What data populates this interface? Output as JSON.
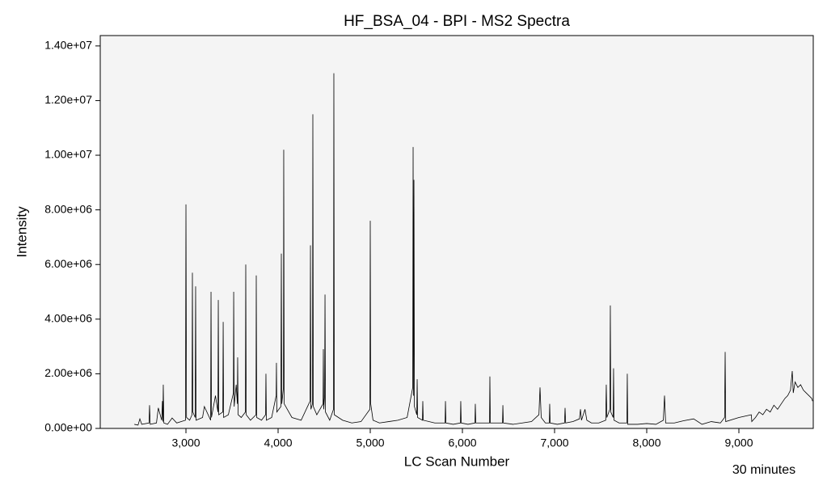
{
  "chart_data": {
    "type": "line",
    "title": "HF_BSA_04 - BPI - MS2 Spectra",
    "x_label": "LC Scan Number",
    "y_label": "Intensity",
    "annotation": "30 minutes",
    "color": "#000000",
    "xlim": [
      2070,
      9807
    ],
    "ylim": [
      0,
      14380000
    ],
    "xticks": [
      {
        "value": 3000,
        "label": "3,000"
      },
      {
        "value": 4000,
        "label": "4,000"
      },
      {
        "value": 5000,
        "label": "5,000"
      },
      {
        "value": 6000,
        "label": "6,000"
      },
      {
        "value": 7000,
        "label": "7,000"
      },
      {
        "value": 8000,
        "label": "8,000"
      },
      {
        "value": 9000,
        "label": "9,000"
      }
    ],
    "yticks": [
      {
        "value": 0,
        "label": "0.00e+00"
      },
      {
        "value": 2000000,
        "label": "2.00e+06"
      },
      {
        "value": 4000000,
        "label": "4.00e+06"
      },
      {
        "value": 6000000,
        "label": "6.00e+06"
      },
      {
        "value": 8000000,
        "label": "8.00e+06"
      },
      {
        "value": 10000000,
        "label": "1.00e+07"
      },
      {
        "value": 12000000,
        "label": "1.20e+07"
      },
      {
        "value": 14000000,
        "label": "1.40e+07"
      }
    ],
    "x": [
      2440,
      2480,
      2500,
      2520,
      2600,
      2605,
      2612,
      2680,
      2700,
      2737,
      2745,
      2750,
      2754,
      2760,
      2800,
      2850,
      2900,
      2995,
      3000,
      3006,
      3040,
      3066,
      3070,
      3075,
      3100,
      3105,
      3110,
      3180,
      3200,
      3268,
      3272,
      3277,
      3320,
      3347,
      3351,
      3356,
      3400,
      3404,
      3409,
      3460,
      3515,
      3518,
      3523,
      3545,
      3558,
      3561,
      3566,
      3600,
      3645,
      3649,
      3654,
      3700,
      3760,
      3763,
      3768,
      3820,
      3864,
      3868,
      3873,
      3930,
      3979,
      3982,
      3986,
      4030,
      4035,
      4040,
      4058,
      4061,
      4066,
      4150,
      4250,
      4347,
      4351,
      4356,
      4373,
      4377,
      4382,
      4420,
      4488,
      4491,
      4495,
      4505,
      4509,
      4514,
      4560,
      4601,
      4605,
      4610,
      4700,
      4800,
      4900,
      4996,
      5000,
      5005,
      5030,
      5100,
      5200,
      5300,
      5400,
      5461,
      5465,
      5470,
      5474,
      5479,
      5505,
      5509,
      5514,
      5566,
      5570,
      5575,
      5700,
      5812,
      5816,
      5821,
      5900,
      5978,
      5982,
      5987,
      6060,
      6136,
      6140,
      6145,
      6220,
      6294,
      6298,
      6303,
      6370,
      6435,
      6439,
      6444,
      6550,
      6650,
      6750,
      6830,
      6842,
      6855,
      6900,
      6943,
      6947,
      6952,
      7030,
      7108,
      7114,
      7120,
      7200,
      7270,
      7281,
      7292,
      7330,
      7350,
      7400,
      7480,
      7555,
      7561,
      7567,
      7600,
      7605,
      7610,
      7636,
      7640,
      7645,
      7700,
      7785,
      7789,
      7794,
      7900,
      8000,
      8100,
      8180,
      8193,
      8205,
      8300,
      8400,
      8509,
      8600,
      8700,
      8800,
      8845,
      8851,
      8857,
      9000,
      9135,
      9140,
      9180,
      9220,
      9260,
      9300,
      9340,
      9380,
      9420,
      9460,
      9500,
      9530,
      9560,
      9579,
      9590,
      9610,
      9640,
      9670,
      9700,
      9730,
      9760,
      9790,
      9800
    ],
    "values": [
      150000,
      120000,
      350000,
      150000,
      200000,
      850000,
      150000,
      200000,
      750000,
      300000,
      1000000,
      250000,
      1600000,
      200000,
      150000,
      380000,
      200000,
      300000,
      8200000,
      400000,
      300000,
      500000,
      5700000,
      600000,
      400000,
      5200000,
      300000,
      400000,
      800000,
      300000,
      5000000,
      400000,
      1200000,
      600000,
      4700000,
      500000,
      600000,
      3900000,
      400000,
      500000,
      1300000,
      5000000,
      800000,
      1600000,
      900000,
      2600000,
      500000,
      400000,
      600000,
      6000000,
      500000,
      300000,
      500000,
      5600000,
      400000,
      300000,
      500000,
      2000000,
      300000,
      400000,
      1200000,
      2400000,
      600000,
      800000,
      6400000,
      900000,
      1500000,
      10200000,
      900000,
      400000,
      300000,
      1000000,
      6700000,
      700000,
      900000,
      11500000,
      800000,
      500000,
      900000,
      2900000,
      700000,
      1200000,
      4900000,
      600000,
      300000,
      700000,
      13000000,
      500000,
      300000,
      200000,
      250000,
      700000,
      7600000,
      900000,
      300000,
      200000,
      250000,
      300000,
      400000,
      1500000,
      10300000,
      1200000,
      9100000,
      800000,
      500000,
      1800000,
      400000,
      300000,
      1000000,
      300000,
      200000,
      200000,
      1000000,
      200000,
      150000,
      200000,
      1000000,
      200000,
      150000,
      200000,
      900000,
      200000,
      200000,
      200000,
      1900000,
      200000,
      200000,
      200000,
      850000,
      200000,
      150000,
      200000,
      250000,
      500000,
      1500000,
      400000,
      200000,
      200000,
      900000,
      200000,
      150000,
      200000,
      750000,
      200000,
      250000,
      350000,
      700000,
      300000,
      700000,
      300000,
      200000,
      200000,
      300000,
      1600000,
      400000,
      700000,
      4500000,
      600000,
      400000,
      2200000,
      300000,
      200000,
      200000,
      2000000,
      150000,
      150000,
      180000,
      150000,
      300000,
      1200000,
      200000,
      200000,
      280000,
      350000,
      150000,
      250000,
      200000,
      400000,
      2800000,
      250000,
      400000,
      500000,
      250000,
      400000,
      600000,
      500000,
      700000,
      600000,
      850000,
      700000,
      900000,
      1100000,
      1200000,
      1400000,
      2100000,
      1300000,
      1700000,
      1500000,
      1600000,
      1400000,
      1300000,
      1200000,
      1100000,
      1000000
    ]
  }
}
